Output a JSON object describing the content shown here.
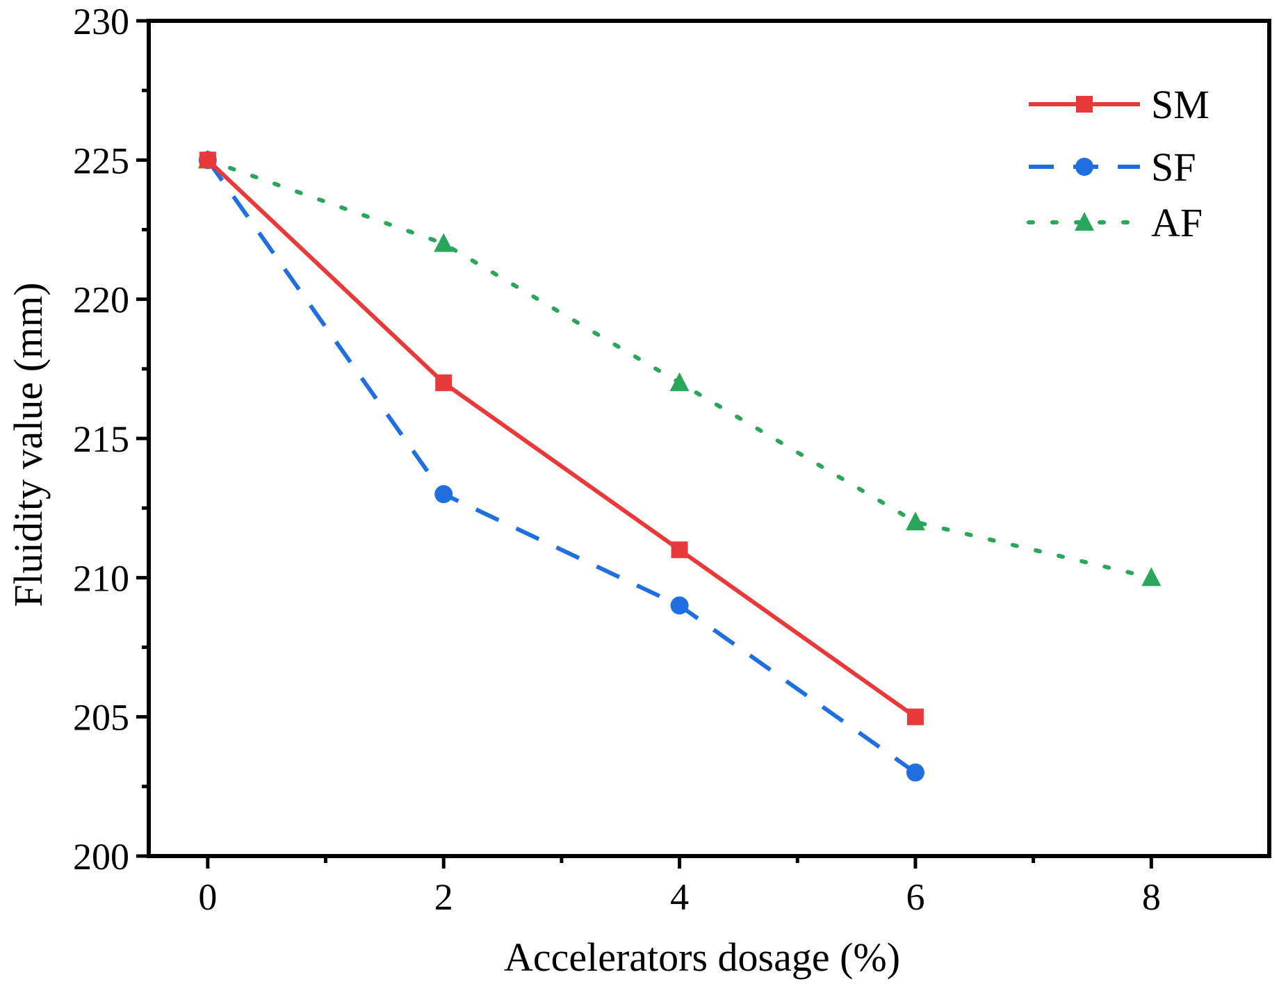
{
  "chart_data": {
    "type": "line",
    "title": "",
    "xlabel": "Accelerators dosage (%)",
    "ylabel": "Fluidity value (mm)",
    "xlim": [
      -0.5,
      9
    ],
    "ylim": [
      200,
      230
    ],
    "x_ticks": [
      0,
      2,
      4,
      6,
      8
    ],
    "x_tick_labels": [
      "0",
      "2",
      "4",
      "6",
      "8"
    ],
    "x_minor_ticks": [
      1,
      3,
      5,
      7
    ],
    "y_ticks": [
      200,
      205,
      210,
      215,
      220,
      225,
      230
    ],
    "y_tick_labels": [
      "200",
      "205",
      "210",
      "215",
      "220",
      "225",
      "230"
    ],
    "y_minor_ticks": [
      202.5,
      207.5,
      212.5,
      217.5,
      222.5,
      227.5
    ],
    "grid": false,
    "legend_position": "top-right",
    "series": [
      {
        "name": "SM",
        "color": "#e8393b",
        "line_style": "solid",
        "marker": "square",
        "x": [
          0,
          2,
          4,
          6
        ],
        "values": [
          225,
          217,
          211,
          205
        ]
      },
      {
        "name": "SF",
        "color": "#1f6fe0",
        "line_style": "dashed",
        "marker": "circle",
        "x": [
          0,
          2,
          4,
          6
        ],
        "values": [
          225,
          213,
          209,
          203
        ]
      },
      {
        "name": "AF",
        "color": "#2aa65a",
        "line_style": "dotted",
        "marker": "triangle",
        "x": [
          0,
          2,
          4,
          6,
          8
        ],
        "values": [
          225,
          222,
          217,
          212,
          210
        ]
      }
    ]
  }
}
